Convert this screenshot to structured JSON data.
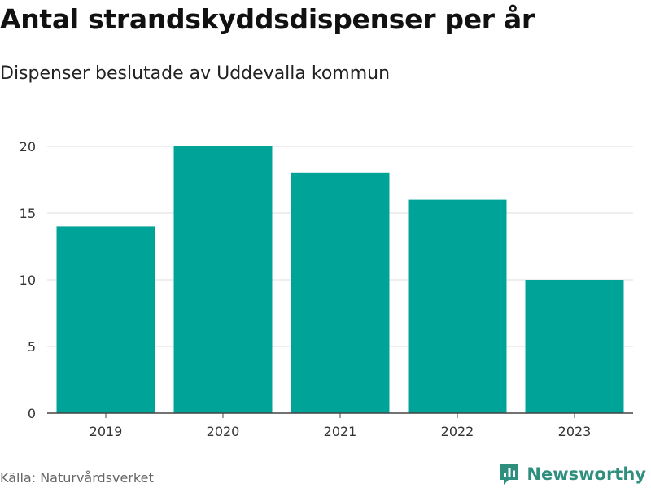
{
  "title": "Antal strandskyddsdispenser per år",
  "subtitle": "Dispenser beslutade av Uddevalla kommun",
  "source": "Källa: Naturvårdsverket",
  "brand": {
    "name": "Newsworthy",
    "icon": "bar-chart-icon",
    "color": "#2f8f7f"
  },
  "chart_data": {
    "type": "bar",
    "categories": [
      "2019",
      "2020",
      "2021",
      "2022",
      "2023"
    ],
    "values": [
      14,
      20,
      18,
      16,
      10
    ],
    "ylim": [
      0,
      20
    ],
    "yticks": [
      0,
      5,
      10,
      15,
      20
    ],
    "grid": true,
    "bar_color": "#00a398",
    "xlabel": "",
    "ylabel": ""
  }
}
